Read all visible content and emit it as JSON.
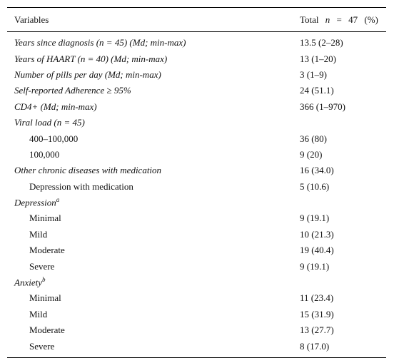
{
  "table": {
    "header": {
      "variables": "Variables",
      "total": {
        "prefix": "Total ",
        "n": "n",
        "suffix": " = 47 (%)"
      }
    },
    "rows": [
      {
        "label": "Years since diagnosis (n = 45) (Md; min-max)",
        "value": "13.5 (2–28)"
      },
      {
        "label": "Years of HAART (n = 40) (Md; min-max)",
        "value": "13 (1–20)"
      },
      {
        "label": "Number of pills per day (Md; min-max)",
        "value": "3 (1–9)"
      },
      {
        "label": "Self-reported Adherence ≥ 95%",
        "value": "24 (51.1)"
      },
      {
        "label": "CD4+ (Md; min-max)",
        "value": "366 (1–970)"
      },
      {
        "label": "Viral load (n = 45)",
        "items": [
          {
            "label": "400–100,000",
            "value": "36 (80)"
          },
          {
            "label": "100,000",
            "value": "9 (20)"
          }
        ]
      },
      {
        "label": "Other chronic diseases with medication",
        "value": "16 (34.0)",
        "items": [
          {
            "label": "Depression with medication",
            "value": "5 (10.6)"
          }
        ]
      },
      {
        "label": "Depression",
        "sup": "a",
        "items": [
          {
            "label": "Minimal",
            "value": "9 (19.1)"
          },
          {
            "label": "Mild",
            "value": "10 (21.3)"
          },
          {
            "label": "Moderate",
            "value": "19 (40.4)"
          },
          {
            "label": "Severe",
            "value": "9 (19.1)"
          }
        ]
      },
      {
        "label": "Anxiety",
        "sup": "b",
        "items": [
          {
            "label": "Minimal",
            "value": "11 (23.4)"
          },
          {
            "label": "Mild",
            "value": "15 (31.9)"
          },
          {
            "label": "Moderate",
            "value": "13 (27.7)"
          },
          {
            "label": "Severe",
            "value": "8 (17.0)"
          }
        ]
      }
    ]
  }
}
